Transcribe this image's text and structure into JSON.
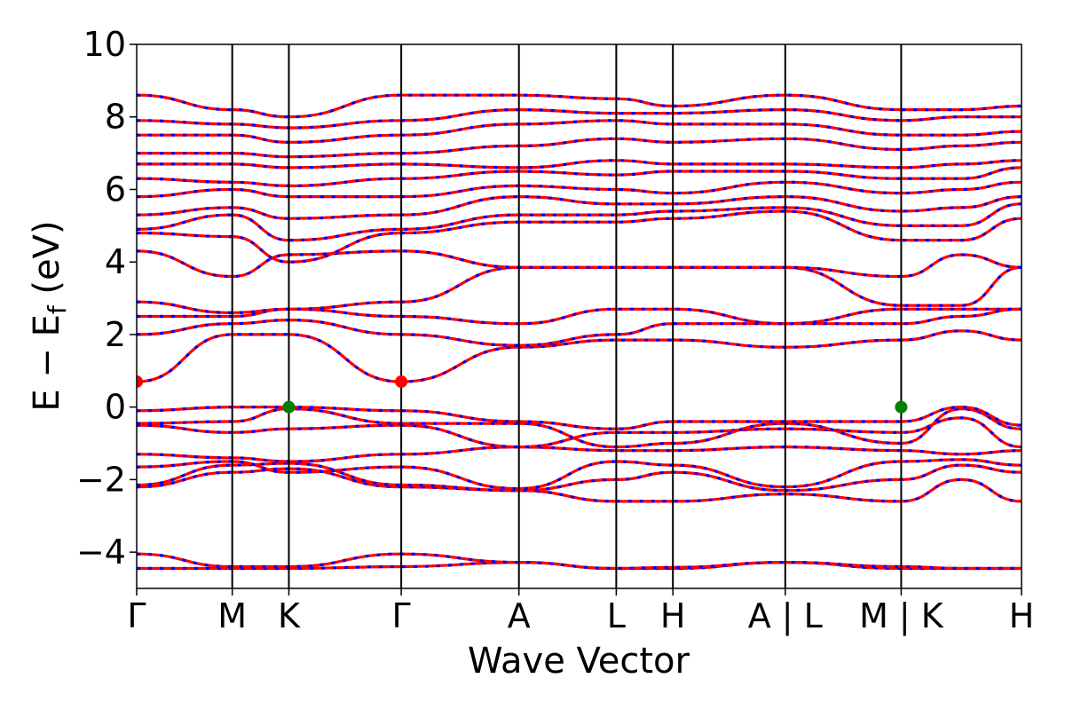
{
  "chart_data": {
    "type": "line",
    "title": "",
    "xlabel": "Wave Vector",
    "ylabel": "E − E",
    "ylabel_sub": "f",
    "ylabel_unit": " (eV)",
    "ylim": [
      -5,
      10
    ],
    "yticks": [
      -4,
      -2,
      0,
      2,
      4,
      6,
      8,
      10
    ],
    "ytick_labels": [
      "−4",
      "−2",
      "0",
      "2",
      "4",
      "6",
      "8",
      "10"
    ],
    "xlim": [
      0,
      10
    ],
    "kpoints": [
      {
        "label": "Γ",
        "x": 0.0
      },
      {
        "label": "M",
        "x": 1.08
      },
      {
        "label": "K",
        "x": 1.72
      },
      {
        "label": "Γ",
        "x": 2.99
      },
      {
        "label": "A",
        "x": 4.32
      },
      {
        "label": "L",
        "x": 5.42
      },
      {
        "label": "H",
        "x": 6.06
      },
      {
        "label": "A | L",
        "x": 7.33
      },
      {
        "label": "M | K",
        "x": 8.64
      },
      {
        "label": "H",
        "x": 10.0
      }
    ],
    "colors": {
      "spin_up": "#ff0000",
      "spin_down": "#0000ff",
      "vbm": "#008000",
      "cbm": "#ff0000",
      "vline": "#000000"
    },
    "vbm_points": [
      [
        1.72,
        0.0
      ],
      [
        8.64,
        0.0
      ]
    ],
    "cbm_points": [
      [
        0.0,
        0.7
      ],
      [
        2.99,
        0.7
      ]
    ],
    "series": [
      {
        "y": [
          -4.45,
          -4.45,
          -4.45,
          -4.4,
          -4.28,
          -4.45,
          -4.45,
          -4.28,
          -4.45,
          -4.45,
          -4.45
        ]
      },
      {
        "y": [
          -4.05,
          -4.4,
          -4.4,
          -4.05,
          -4.28,
          -4.45,
          -4.42,
          -4.28,
          -4.4,
          -4.45,
          -4.45
        ]
      },
      {
        "y": [
          -2.2,
          -1.8,
          -1.7,
          -2.2,
          -2.3,
          -2.6,
          -2.6,
          -2.4,
          -2.6,
          -2.0,
          -2.6
        ]
      },
      {
        "y": [
          -2.15,
          -1.6,
          -1.55,
          -2.15,
          -2.3,
          -2.0,
          -1.8,
          -2.3,
          -2.0,
          -1.6,
          -1.8
        ]
      },
      {
        "y": [
          -1.65,
          -1.5,
          -1.8,
          -1.65,
          -2.25,
          -1.5,
          -1.6,
          -2.2,
          -1.5,
          -1.45,
          -1.6
        ]
      },
      {
        "y": [
          -1.3,
          -1.4,
          -1.5,
          -1.3,
          -1.1,
          -1.2,
          -1.2,
          -1.1,
          -1.2,
          -1.3,
          -1.2
        ]
      },
      {
        "y": [
          -0.5,
          -0.7,
          -0.6,
          -0.5,
          -1.1,
          -0.7,
          -0.7,
          -0.6,
          -0.7,
          -0.3,
          -1.1
        ]
      },
      {
        "y": [
          -0.45,
          -0.4,
          -0.05,
          -0.45,
          -0.45,
          -1.1,
          -1.0,
          -0.45,
          -1.0,
          -0.05,
          -0.6
        ]
      },
      {
        "y": [
          -0.1,
          0.0,
          0.0,
          -0.1,
          -0.4,
          -0.6,
          -0.4,
          -0.4,
          -0.4,
          0.0,
          -0.5
        ]
      },
      {
        "y": [
          0.7,
          2.0,
          2.0,
          0.7,
          1.65,
          1.85,
          1.85,
          1.65,
          1.85,
          2.1,
          1.85
        ]
      },
      {
        "y": [
          2.0,
          2.3,
          2.4,
          2.0,
          1.7,
          2.0,
          2.3,
          2.3,
          2.3,
          2.5,
          2.7
        ]
      },
      {
        "y": [
          2.5,
          2.5,
          2.7,
          2.5,
          2.3,
          2.7,
          2.7,
          2.3,
          2.7,
          2.7,
          2.7
        ]
      },
      {
        "y": [
          2.9,
          2.6,
          2.7,
          2.9,
          3.85,
          3.85,
          3.85,
          3.85,
          2.8,
          2.8,
          3.85
        ]
      },
      {
        "y": [
          4.3,
          3.6,
          4.2,
          4.3,
          3.85,
          3.85,
          3.85,
          3.85,
          3.6,
          4.2,
          3.85
        ]
      },
      {
        "y": [
          4.8,
          4.7,
          4.0,
          4.8,
          5.1,
          5.1,
          5.2,
          5.4,
          4.6,
          4.6,
          5.2
        ]
      },
      {
        "y": [
          4.9,
          5.3,
          4.6,
          4.9,
          5.3,
          5.3,
          5.4,
          5.5,
          5.0,
          5.0,
          5.6
        ]
      },
      {
        "y": [
          5.3,
          5.5,
          5.2,
          5.3,
          5.8,
          5.6,
          5.6,
          5.8,
          5.4,
          5.5,
          5.8
        ]
      },
      {
        "y": [
          5.8,
          6.0,
          5.8,
          5.8,
          6.1,
          6.0,
          5.9,
          6.2,
          5.9,
          6.0,
          6.2
        ]
      },
      {
        "y": [
          6.3,
          6.2,
          6.1,
          6.3,
          6.5,
          6.4,
          6.5,
          6.5,
          6.3,
          6.3,
          6.6
        ]
      },
      {
        "y": [
          6.7,
          6.7,
          6.6,
          6.7,
          6.6,
          6.8,
          6.7,
          6.7,
          6.6,
          6.7,
          6.8
        ]
      },
      {
        "y": [
          7.0,
          7.0,
          6.9,
          7.0,
          7.2,
          7.4,
          7.3,
          7.4,
          7.1,
          7.2,
          7.3
        ]
      },
      {
        "y": [
          7.5,
          7.5,
          7.3,
          7.5,
          7.8,
          7.9,
          7.8,
          7.8,
          7.5,
          7.5,
          7.6
        ]
      },
      {
        "y": [
          7.9,
          7.8,
          7.7,
          7.9,
          8.2,
          8.1,
          8.1,
          8.2,
          7.9,
          8.0,
          8.0
        ]
      },
      {
        "y": [
          8.6,
          8.2,
          8.0,
          8.6,
          8.6,
          8.5,
          8.3,
          8.6,
          8.2,
          8.2,
          8.3
        ]
      }
    ]
  }
}
